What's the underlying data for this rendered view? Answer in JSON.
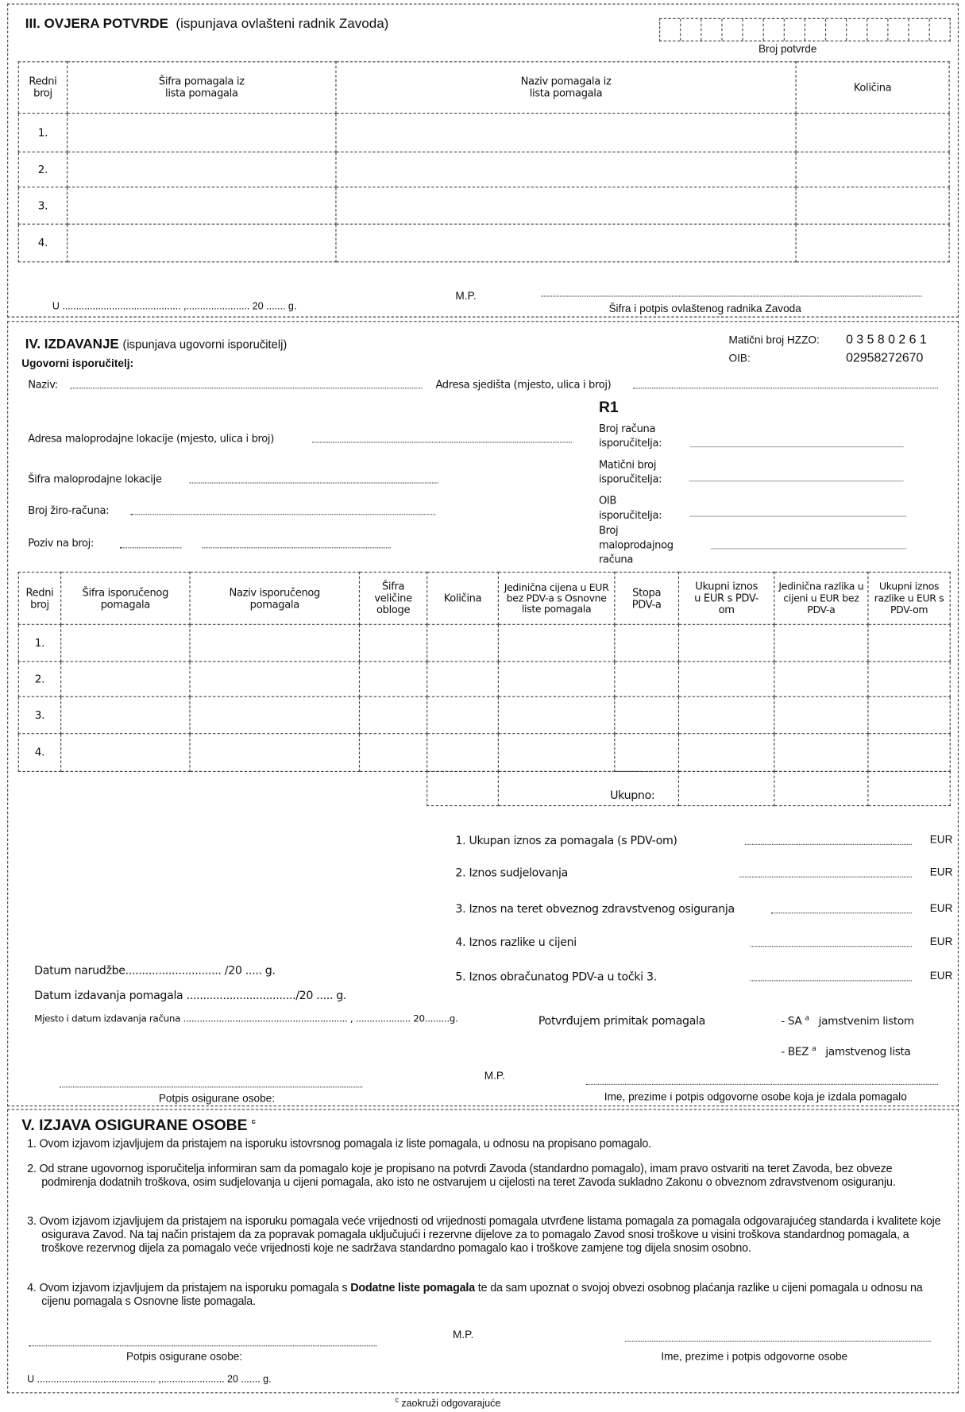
{
  "section3": {
    "title": "III. OVJERA POTVRDE",
    "subtitle": "(ispunjava ovlašteni radnik Zavoda)",
    "broj_potvrde_label": "Broj potvrde",
    "broj_potvrde_cells": 14,
    "table": {
      "headers": [
        "Redni broj",
        "Šifra pomagala iz lista pomagala",
        "Naziv pomagala iz lista pomagala",
        "Količina"
      ],
      "rows": [
        "1.",
        "2.",
        "3.",
        "4."
      ]
    },
    "place_line": "U ........................................... ,....................... 20 ....... g.",
    "mp": "M.P.",
    "signature_label": "Šifra i potpis ovlaštenog radnika Zavoda"
  },
  "section4": {
    "title": "IV. IZDAVANJE",
    "subtitle": "(ispunjava  ugovorni isporučitelj)",
    "supplier_label": "Ugovorni isporučitelj:",
    "hzzo_label": "Matični broj HZZO:",
    "hzzo_value": "0 3 5 8 0 2 6 1",
    "oib_label": "OIB:",
    "oib_value": "02958272670",
    "naziv": "Naziv:",
    "adresa_sjedista": "Adresa sjedišta (mjesto, ulica i broj)",
    "r1": "R1",
    "broj_racuna": [
      "Broj računa",
      "isporučitelja:"
    ],
    "adresa_lokacije": "Adresa maloprodajne lokacije  (mjesto, ulica i broj)",
    "maticni_isporucitelja": [
      "Matični broj",
      "isporučitelja:"
    ],
    "sifra_lokacije": "Šifra maloprodajne lokacije",
    "oib_isporucitelja": [
      "OIB",
      "isporučitelja:"
    ],
    "ziro": "Broj žiro-računa:",
    "broj_maloprodajnog": [
      "Broj",
      "maloprodajnog",
      "računa"
    ],
    "poziv": "Poziv na broj:",
    "table": {
      "headers": [
        "Redni broj",
        "Šifra isporučenog pomagala",
        "Naziv isporučenog pomagala",
        "Šifra veličine obloge",
        "Količina",
        "Jedinična cijena u EUR bez PDV-a s Osnovne liste pomagala",
        "Stopa PDV-a",
        "Ukupni iznos u EUR s PDV-om",
        "Jedinična razlika u cijeni u EUR bez PDV-a",
        "Ukupni iznos razlike u EUR s PDV-om"
      ],
      "rows": [
        "1.",
        "2.",
        "3.",
        "4."
      ],
      "total_label": "Ukupno:"
    },
    "amounts": [
      {
        "label": "1. Ukupan iznos za pomagala (s PDV-om)",
        "unit": "EUR"
      },
      {
        "label": "2. Iznos sudjelovanja",
        "unit": "EUR"
      },
      {
        "label": "3. Iznos na teret obveznog zdravstvenog osiguranja",
        "unit": "EUR"
      },
      {
        "label": "4. Iznos razlike u cijeni",
        "unit": "EUR"
      },
      {
        "label": "5. Iznos obračunatog PDV-a u točki 3.",
        "unit": "EUR"
      }
    ],
    "datum_narudzbe": "Datum  narudžbe.............................  /20 ..... g.",
    "datum_izdavanja": "Datum  izdavanja pomagala  ................................./20  ..... g.",
    "mjesto_datum": "Mjesto i datum izdavanja računa ............................................................  ,  ....................  20.........g.",
    "potvrdjujem": "Potvrđujem primitak pomagala",
    "sa": "- SA",
    "sa_text": "jamstvenim listom",
    "bez": "- BEZ",
    "bez_text": "jamstvenog lista",
    "footnote_mark": "a",
    "mp": "M.P.",
    "potpis_osigurane": "Potpis osigurane osobe:",
    "potpis_odgovorne": "Ime, prezime i potpis odgovorne osobe koja je izdala pomagalo"
  },
  "section5": {
    "title": "V. IZJAVA OSIGURANE OSOBE",
    "title_mark": "c",
    "paragraphs": [
      "1. Ovom izjavom izjavljujem da pristajem na isporuku istovrsnog pomagala iz liste pomagala, u odnosu na propisano pomagalo.",
      "2. Od strane ugovornog isporučitelja informiran sam da pomagalo koje je propisano na potvrdi Zavoda (standardno pomagalo), imam pravo ostvariti na teret Zavoda, bez obveze podmirenja dodatnih troškova, osim sudjelovanja u cijeni pomagala, ako isto ne ostvarujem u cijelosti na teret Zavoda sukladno Zakonu o obveznom zdravstvenom osiguranju.",
      "3. Ovom izjavom izjavljujem da pristajem na isporuku pomagala veće vrijednosti od vrijednosti pomagala utvrđene listama pomagala za pomagala odgovarajućeg standarda i kvalitete koje osigurava Zavod. Na taj način pristajem da za popravak pomagala uključujući i rezervne dijelove za to pomagalo Zavod snosi troškove u visini troškova standardnog pomagala, a troškove rezervnog dijela za pomagalo veće vrijednosti koje ne sadržava standardno pomagalo kao i troškove zamjene tog dijela snosim osobno."
    ],
    "p4_pre": "4. Ovom izjavom izjavljujem da pristajem na isporuku pomagala s ",
    "p4_bold": "Dodatne liste pomagala",
    "p4_post": " te da sam upoznat o svojoj obvezi osobnog plaćanja razlike u cijeni pomagala u odnosu na cijenu pomagala s Osnovne liste pomagala.",
    "mp": "M.P.",
    "potpis_osigurane": "Potpis osigurane osobe:",
    "potpis_odgovorne": "Ime, prezime i potpis odgovorne osobe",
    "place_line": "U ........................................... ,....................... 20 ....... g."
  },
  "footnote": {
    "mark": "c",
    "text": "zaokruži odgovarajuće"
  }
}
